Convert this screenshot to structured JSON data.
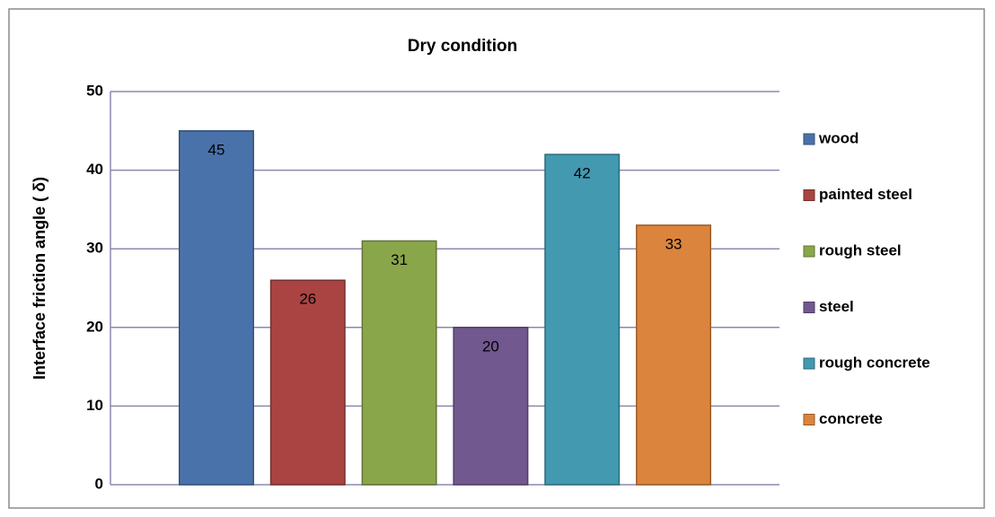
{
  "chart_data": {
    "type": "bar",
    "title": "Dry condition",
    "y_label": "Interface friction angle (   δ)",
    "categories": [
      null
    ],
    "series": [
      {
        "name": "wood",
        "color": "#4a72aa",
        "values": [
          45
        ]
      },
      {
        "name": "painted steel",
        "color": "#a94442",
        "values": [
          26
        ]
      },
      {
        "name": "rough steel",
        "color": "#8aa64a",
        "values": [
          31
        ]
      },
      {
        "name": "steel",
        "color": "#71588f",
        "values": [
          20
        ]
      },
      {
        "name": "rough concrete",
        "color": "#4299b0",
        "values": [
          42
        ]
      },
      {
        "name": "concrete",
        "color": "#db843d",
        "values": [
          33
        ]
      }
    ],
    "ylim": [
      0,
      50
    ],
    "yticks": [
      0,
      10,
      20,
      30,
      40,
      50
    ],
    "grid": true,
    "legend": "right"
  }
}
